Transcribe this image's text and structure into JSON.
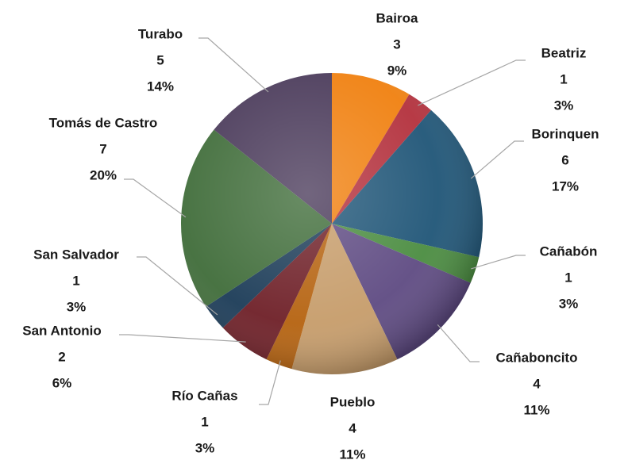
{
  "chart_data": {
    "type": "pie",
    "categories": [
      "Bairoa",
      "Beatriz",
      "Borinquen",
      "Cañabón",
      "Cañaboncito",
      "Pueblo",
      "Río Cañas",
      "San Antonio",
      "San Salvador",
      "Tomás de Castro",
      "Turabo"
    ],
    "values": [
      3,
      1,
      6,
      1,
      4,
      4,
      1,
      2,
      1,
      7,
      5
    ],
    "percent_labels": [
      "9%",
      "3%",
      "17%",
      "3%",
      "11%",
      "11%",
      "3%",
      "6%",
      "3%",
      "20%",
      "14%"
    ],
    "colors": [
      "#f0800f",
      "#b3303c",
      "#1f5577",
      "#4a8c40",
      "#5e4a82",
      "#c69c6a",
      "#b5620f",
      "#6e1f27",
      "#1b3b57",
      "#3f6c39",
      "#4a3a5a"
    ]
  }
}
